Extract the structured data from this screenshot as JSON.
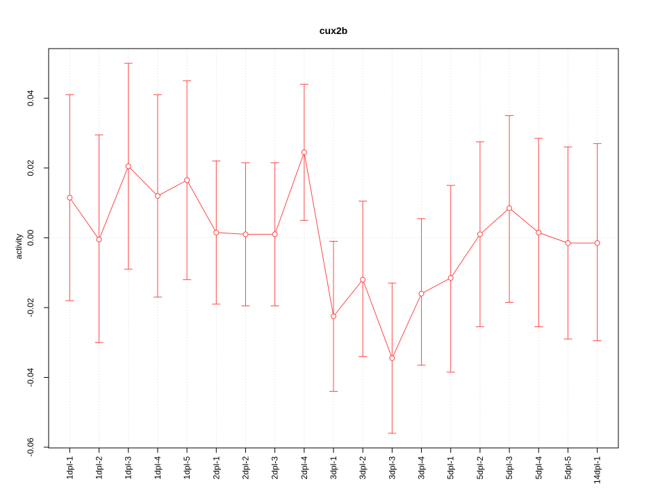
{
  "chart_data": {
    "type": "line",
    "title": "cux2b",
    "xlabel": "",
    "ylabel": "activity",
    "categories": [
      "1dpl-1",
      "1dpl-2",
      "1dpl-3",
      "1dpl-4",
      "1dpl-5",
      "2dpl-1",
      "2dpl-2",
      "2dpl-3",
      "2dpl-4",
      "3dpl-1",
      "3dpl-2",
      "3dpl-3",
      "3dpl-4",
      "5dpl-1",
      "5dpl-2",
      "5dpl-3",
      "5dpl-4",
      "5dpl-5",
      "14dpl-1"
    ],
    "series": [
      {
        "name": "activity",
        "values": [
          0.0115,
          -0.0005,
          0.0205,
          0.012,
          0.0165,
          0.0015,
          0.001,
          0.001,
          0.0245,
          -0.0225,
          -0.012,
          -0.0345,
          -0.016,
          -0.0115,
          0.001,
          0.0085,
          0.0015,
          -0.0015,
          -0.0015
        ],
        "upper": [
          0.041,
          0.0295,
          0.05,
          0.041,
          0.045,
          0.022,
          0.0215,
          0.0215,
          0.044,
          -0.001,
          0.0105,
          -0.013,
          0.0055,
          0.015,
          0.0275,
          0.035,
          0.0285,
          0.026,
          0.027
        ],
        "lower": [
          -0.018,
          -0.03,
          -0.009,
          -0.017,
          -0.012,
          -0.019,
          -0.0195,
          -0.0195,
          0.005,
          -0.044,
          -0.034,
          -0.056,
          -0.0365,
          -0.0385,
          -0.0255,
          -0.0185,
          -0.0255,
          -0.029,
          -0.0295
        ]
      }
    ],
    "ylim": [
      -0.0602,
      0.0542
    ],
    "yticks": [
      -0.06,
      -0.04,
      -0.02,
      0,
      0.02,
      0.04
    ],
    "grid": true,
    "legend": "none",
    "colors": {
      "series": "#ff4444",
      "grid": "#d8d8d8",
      "axis": "#000000",
      "background": "#ffffff"
    }
  }
}
